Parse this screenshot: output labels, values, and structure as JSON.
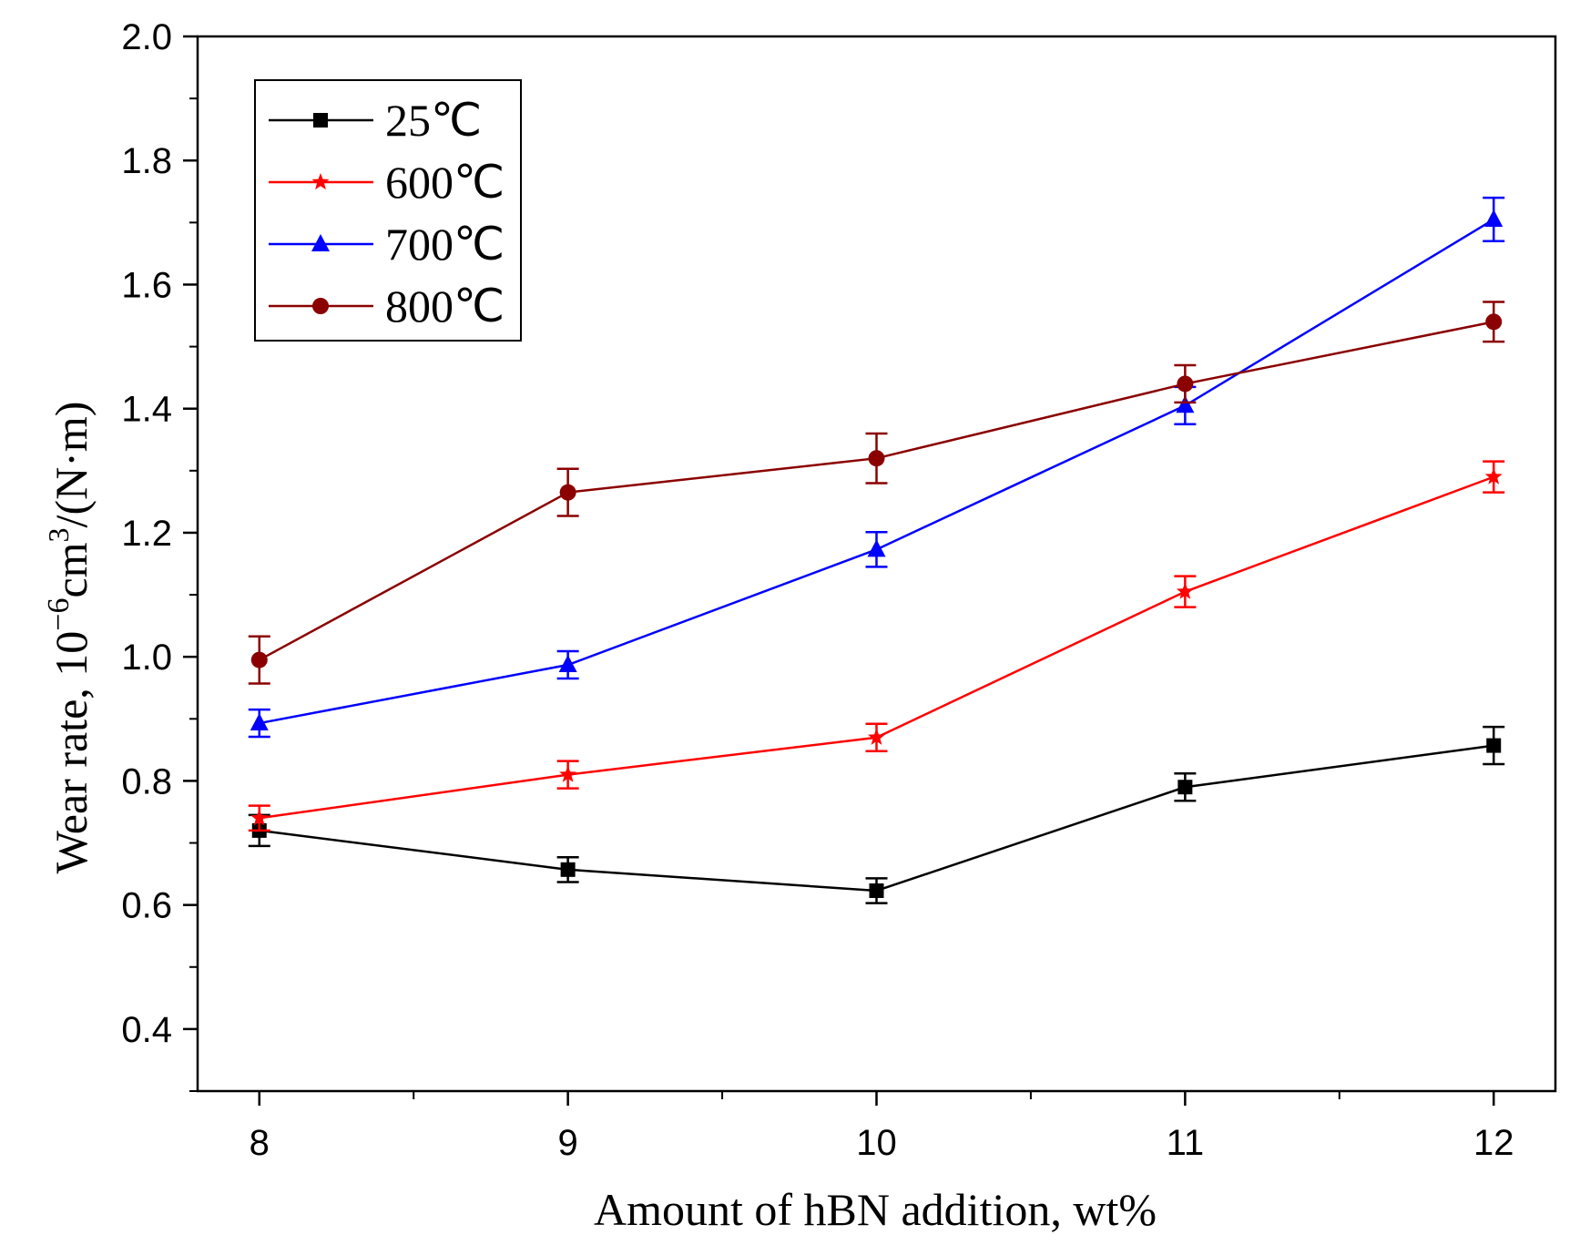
{
  "chart_data": {
    "type": "line",
    "title": "",
    "xlabel": "Amount of hBN addition, wt%",
    "ylabel": {
      "prefix": "Wear rate, 10",
      "exp1": "−6",
      "mid": "cm",
      "exp2": "3",
      "suffix": "/(N·m)"
    },
    "x": [
      8,
      9,
      10,
      11,
      12
    ],
    "xlim": [
      7.8,
      12.2
    ],
    "ylim": [
      0.3,
      2.0
    ],
    "x_ticks": [
      "8",
      "9",
      "10",
      "11",
      "12"
    ],
    "y_ticks": [
      "0.4",
      "0.6",
      "0.8",
      "1.0",
      "1.2",
      "1.4",
      "1.6",
      "1.8",
      "2.0"
    ],
    "grid": false,
    "legend_position": "top-left",
    "series": [
      {
        "name": "25℃",
        "color": "#000000",
        "marker": "square",
        "values": [
          0.72,
          0.657,
          0.623,
          0.79,
          0.857
        ],
        "errors": [
          0.025,
          0.02,
          0.02,
          0.022,
          0.03
        ]
      },
      {
        "name": "600℃",
        "color": "#ff0000",
        "marker": "star",
        "values": [
          0.74,
          0.81,
          0.87,
          1.105,
          1.29
        ],
        "errors": [
          0.02,
          0.022,
          0.022,
          0.025,
          0.025
        ]
      },
      {
        "name": "700℃",
        "color": "#0000ff",
        "marker": "triangle",
        "values": [
          0.893,
          0.987,
          1.173,
          1.405,
          1.705
        ],
        "errors": [
          0.022,
          0.022,
          0.028,
          0.03,
          0.035
        ]
      },
      {
        "name": "800℃",
        "color": "#8b0000",
        "marker": "circle",
        "values": [
          0.995,
          1.265,
          1.32,
          1.44,
          1.54
        ],
        "errors": [
          0.038,
          0.038,
          0.04,
          0.03,
          0.032
        ]
      }
    ]
  }
}
